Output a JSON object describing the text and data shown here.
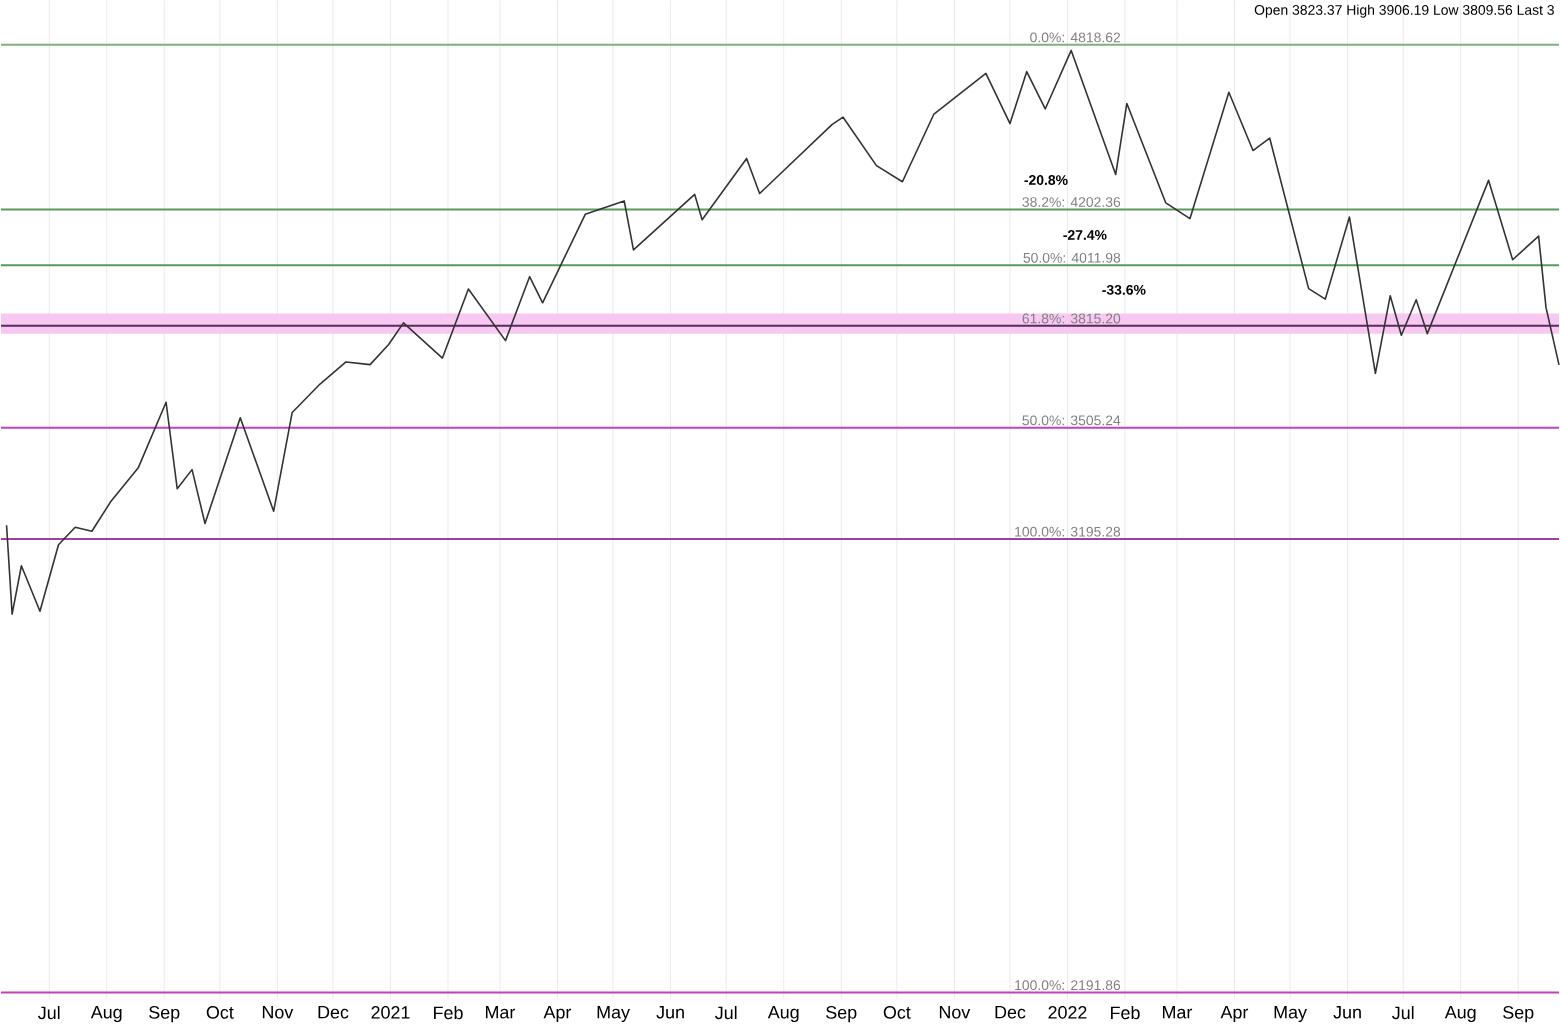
{
  "chart_data": {
    "type": "line",
    "log": "y",
    "grid": true,
    "tick_labels": "x",
    "color": "#333333",
    "xlim": [
      "2020-06-05",
      "2022-09-23"
    ],
    "ylim": [
      2180,
      5000
    ],
    "xticks": [
      {
        "value": "2020-07-01",
        "label": "Jul"
      },
      {
        "value": "2020-08-01",
        "label": "Aug"
      },
      {
        "value": "2020-09-01",
        "label": "Sep"
      },
      {
        "value": "2020-10-01",
        "label": "Oct"
      },
      {
        "value": "2020-11-01",
        "label": "Nov"
      },
      {
        "value": "2020-12-01",
        "label": "Dec"
      },
      {
        "value": "2021-01-01",
        "label": "2021"
      },
      {
        "value": "2021-02-01",
        "label": "Feb"
      },
      {
        "value": "2021-03-01",
        "label": "Mar"
      },
      {
        "value": "2021-04-01",
        "label": "Apr"
      },
      {
        "value": "2021-05-01",
        "label": "May"
      },
      {
        "value": "2021-06-01",
        "label": "Jun"
      },
      {
        "value": "2021-07-01",
        "label": "Jul"
      },
      {
        "value": "2021-08-01",
        "label": "Aug"
      },
      {
        "value": "2021-09-01",
        "label": "Sep"
      },
      {
        "value": "2021-10-01",
        "label": "Oct"
      },
      {
        "value": "2021-11-01",
        "label": "Nov"
      },
      {
        "value": "2021-12-01",
        "label": "Dec"
      },
      {
        "value": "2022-01-01",
        "label": "2022"
      },
      {
        "value": "2022-02-01",
        "label": "Feb"
      },
      {
        "value": "2022-03-01",
        "label": "Mar"
      },
      {
        "value": "2022-04-01",
        "label": "Apr"
      },
      {
        "value": "2022-05-01",
        "label": "May"
      },
      {
        "value": "2022-06-01",
        "label": "Jun"
      },
      {
        "value": "2022-07-01",
        "label": "Jul"
      },
      {
        "value": "2022-08-01",
        "label": "Aug"
      },
      {
        "value": "2022-09-01",
        "label": "Sep"
      }
    ],
    "x": [
      "2020-06-08",
      "2020-06-11",
      "2020-06-16",
      "2020-06-26",
      "2020-07-06",
      "2020-07-15",
      "2020-07-24",
      "2020-08-03",
      "2020-08-18",
      "2020-09-02",
      "2020-09-08",
      "2020-09-16",
      "2020-09-23",
      "2020-10-12",
      "2020-10-30",
      "2020-11-09",
      "2020-11-24",
      "2020-12-08",
      "2020-12-21",
      "2020-12-31",
      "2021-01-08",
      "2021-01-29",
      "2021-02-12",
      "2021-03-04",
      "2021-03-17",
      "2021-03-24",
      "2021-04-16",
      "2021-05-07",
      "2021-05-12",
      "2021-06-14",
      "2021-06-18",
      "2021-07-12",
      "2021-07-19",
      "2021-08-27",
      "2021-09-02",
      "2021-09-20",
      "2021-10-04",
      "2021-10-21",
      "2021-11-18",
      "2021-12-01",
      "2021-12-10",
      "2021-12-20",
      "2022-01-03",
      "2022-01-27",
      "2022-02-02",
      "2022-02-23",
      "2022-03-08",
      "2022-03-29",
      "2022-04-11",
      "2022-04-20",
      "2022-05-11",
      "2022-05-20",
      "2022-06-02",
      "2022-06-16",
      "2022-06-24",
      "2022-06-30",
      "2022-07-08",
      "2022-07-14",
      "2022-08-16",
      "2022-08-29",
      "2022-09-12",
      "2022-09-16",
      "2022-09-23"
    ],
    "values": [
      3232,
      3002,
      3125,
      3009,
      3180,
      3227,
      3216,
      3295,
      3390,
      3580,
      3332,
      3385,
      3237,
      3534,
      3270,
      3550,
      3635,
      3702,
      3694,
      3756,
      3824,
      3714,
      3934,
      3768,
      3974,
      3889,
      4185,
      4232,
      4063,
      4255,
      4166,
      4384,
      4258,
      4509,
      4537,
      4358,
      4300,
      4549,
      4705,
      4513,
      4712,
      4568,
      4796,
      4326,
      4589,
      4225,
      4170,
      4632,
      4413,
      4459,
      3935,
      3901,
      4176,
      3667,
      3912,
      3785,
      3899,
      3790,
      4305,
      4030,
      4110,
      3873,
      3693
    ],
    "ref_lines": [
      {
        "axis": "y",
        "value": 4818.62,
        "label": "0.0%: 4818.62",
        "color": "#7fb07f"
      },
      {
        "axis": "y",
        "value": 4202.36,
        "label": "38.2%: 4202.36",
        "color": "#5a9a5a"
      },
      {
        "axis": "y",
        "value": 4011.98,
        "label": "50.0%: 4011.98",
        "color": "#5a9a5a"
      },
      {
        "axis": "y",
        "value": 3815.2,
        "label": "61.8%: 3815.20",
        "color": "#5a2a5a"
      },
      {
        "axis": "y",
        "value": 3505.24,
        "label": "50.0%: 3505.24",
        "color": "#c040c0"
      },
      {
        "axis": "y",
        "value": 3195.28,
        "label": "100.0%: 3195.28",
        "color": "#a040a0"
      },
      {
        "axis": "y",
        "value": 2191.86,
        "label": "100.0%: 2191.86",
        "color": "#c040c0"
      }
    ],
    "bands": [
      {
        "axis": "y",
        "from": 3790,
        "to": 3855,
        "color": "#f6c8f2"
      }
    ],
    "annotations": [
      "Open 3823.37 High 3906.19 Low 3809.56 Last 3",
      "-20.8%",
      "-27.4%",
      "-33.6%"
    ]
  }
}
